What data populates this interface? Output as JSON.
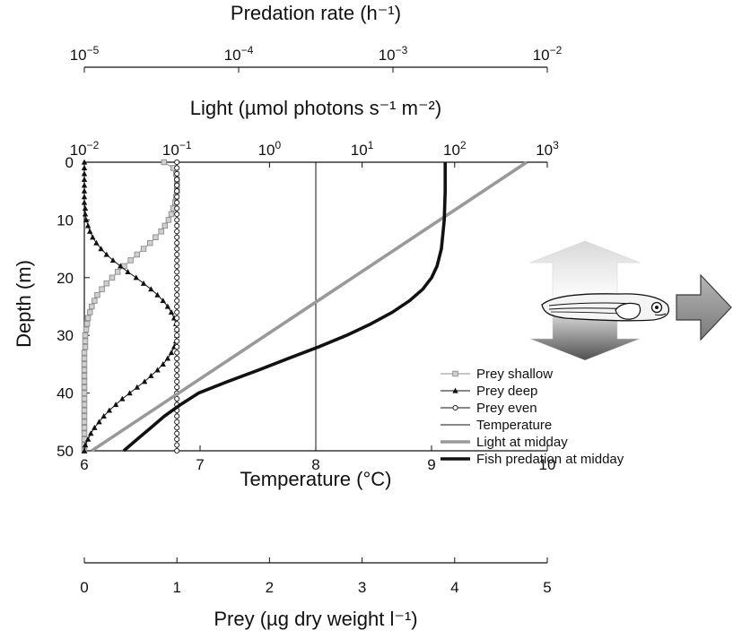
{
  "chart_data": {
    "type": "line",
    "axes": {
      "predation": {
        "label": "Predation rate (h⁻¹)",
        "scale": "log",
        "range": [
          1e-05,
          0.01
        ],
        "ticks": [
          {
            "value": 1e-05,
            "base": "10",
            "exp": "−5"
          },
          {
            "value": 0.0001,
            "base": "10",
            "exp": "−4"
          },
          {
            "value": 0.001,
            "base": "10",
            "exp": "−3"
          },
          {
            "value": 0.01,
            "base": "10",
            "exp": "−2"
          }
        ]
      },
      "light": {
        "label": "Light (µmol photons s⁻¹ m⁻²)",
        "scale": "log",
        "range": [
          0.01,
          1000.0
        ],
        "ticks": [
          {
            "value": 0.01,
            "base": "10",
            "exp": "−2"
          },
          {
            "value": 0.1,
            "base": "10",
            "exp": "−1"
          },
          {
            "value": 1.0,
            "base": "10",
            "exp": "0"
          },
          {
            "value": 10.0,
            "base": "10",
            "exp": "1"
          },
          {
            "value": 100.0,
            "base": "10",
            "exp": "2"
          },
          {
            "value": 1000.0,
            "base": "10",
            "exp": "3"
          }
        ]
      },
      "depth": {
        "label": "Depth (m)",
        "range": [
          0,
          50
        ],
        "inverted": true,
        "ticks": [
          "0",
          "10",
          "20",
          "30",
          "40",
          "50"
        ]
      },
      "temperature": {
        "label": "Temperature (°C)",
        "range": [
          6,
          10
        ],
        "ticks": [
          "6",
          "7",
          "8",
          "9",
          "10"
        ]
      },
      "prey": {
        "label": "Prey (µg dry weight l⁻¹)",
        "range": [
          0,
          5
        ],
        "ticks": [
          "0",
          "1",
          "2",
          "3",
          "4",
          "5"
        ]
      }
    },
    "series": [
      {
        "name": "Prey shallow",
        "axis": "prey",
        "marker": "square",
        "color": "#8c8c8c",
        "depth": [
          0,
          1,
          2,
          3,
          4,
          5,
          6,
          7,
          8,
          9,
          10,
          11,
          12,
          13,
          14,
          15,
          16,
          17,
          18,
          19,
          20,
          21,
          22,
          23,
          24,
          25,
          26,
          27,
          28,
          29,
          30,
          31,
          32,
          33,
          34,
          35,
          36,
          37,
          38,
          39,
          40,
          41,
          42,
          43,
          44,
          45,
          46,
          47,
          48,
          49,
          50
        ],
        "values": [
          0.86,
          0.96,
          0.99,
          1.0,
          1.0,
          1.0,
          0.99,
          0.98,
          0.96,
          0.94,
          0.91,
          0.87,
          0.83,
          0.77,
          0.71,
          0.64,
          0.57,
          0.5,
          0.43,
          0.36,
          0.3,
          0.24,
          0.19,
          0.14,
          0.11,
          0.08,
          0.06,
          0.04,
          0.03,
          0.02,
          0.01,
          0.01,
          0.01,
          0.0,
          0.0,
          0.0,
          0.0,
          0.0,
          0.0,
          0.0,
          0.0,
          0.0,
          0.0,
          0.0,
          0.0,
          0.0,
          0.0,
          0.0,
          0.0,
          0.0,
          0.0
        ]
      },
      {
        "name": "Prey deep",
        "axis": "prey",
        "marker": "triangle",
        "color": "#111111",
        "depth": [
          0,
          1,
          2,
          3,
          4,
          5,
          6,
          7,
          8,
          9,
          10,
          11,
          12,
          13,
          14,
          15,
          16,
          17,
          18,
          19,
          20,
          21,
          22,
          23,
          24,
          25,
          26,
          27,
          28,
          29,
          30,
          31,
          32,
          33,
          34,
          35,
          36,
          37,
          38,
          39,
          40,
          41,
          42,
          43,
          44,
          45,
          46,
          47,
          48,
          49,
          50
        ],
        "values": [
          0.0,
          0.0,
          0.0,
          0.0,
          0.0,
          0.0,
          0.0,
          0.0,
          0.01,
          0.01,
          0.02,
          0.04,
          0.06,
          0.09,
          0.13,
          0.18,
          0.24,
          0.31,
          0.39,
          0.47,
          0.56,
          0.64,
          0.72,
          0.79,
          0.85,
          0.9,
          0.94,
          0.97,
          0.99,
          1.0,
          1.0,
          0.99,
          0.97,
          0.94,
          0.9,
          0.85,
          0.79,
          0.72,
          0.65,
          0.57,
          0.49,
          0.41,
          0.34,
          0.27,
          0.21,
          0.16,
          0.11,
          0.07,
          0.04,
          0.01,
          0.0
        ]
      },
      {
        "name": "Prey even",
        "axis": "prey",
        "marker": "circle",
        "color": "#111111",
        "depth": [
          0,
          1,
          2,
          3,
          4,
          5,
          6,
          7,
          8,
          9,
          10,
          11,
          12,
          13,
          14,
          15,
          16,
          17,
          18,
          19,
          20,
          21,
          22,
          23,
          24,
          25,
          26,
          27,
          28,
          29,
          30,
          31,
          32,
          33,
          34,
          35,
          36,
          37,
          38,
          39,
          40,
          41,
          42,
          43,
          44,
          45,
          46,
          47,
          48,
          49,
          50
        ],
        "values": [
          1.0,
          1.0,
          1.0,
          1.0,
          1.0,
          1.0,
          1.0,
          1.0,
          1.0,
          1.0,
          1.0,
          1.0,
          1.0,
          1.0,
          1.0,
          1.0,
          1.0,
          1.0,
          1.0,
          1.0,
          1.0,
          1.0,
          1.0,
          1.0,
          1.0,
          1.0,
          1.0,
          1.0,
          1.0,
          1.0,
          1.0,
          1.0,
          1.0,
          1.0,
          1.0,
          1.0,
          1.0,
          1.0,
          1.0,
          1.0,
          1.0,
          1.0,
          1.0,
          1.0,
          1.0,
          1.0,
          1.0,
          1.0,
          1.0,
          1.0,
          1.0
        ]
      },
      {
        "name": "Temperature",
        "axis": "temperature",
        "marker": "none",
        "color": "#111111",
        "stroke": "thin",
        "depth": [
          0,
          50
        ],
        "values": [
          8,
          8
        ]
      },
      {
        "name": "Light at midday",
        "axis": "light",
        "marker": "none",
        "color": "#999999",
        "stroke": "thick",
        "depth": [
          0,
          50
        ],
        "values": [
          600,
          0.012
        ]
      },
      {
        "name": "Fish predation at midday",
        "axis": "predation",
        "marker": "none",
        "color": "#111111",
        "stroke": "thick",
        "depth": [
          0,
          5,
          10,
          15,
          18,
          20,
          22,
          24,
          26,
          28,
          30,
          32,
          34,
          36,
          38,
          40,
          42,
          44,
          46,
          48,
          50
        ],
        "values": [
          0.00218,
          0.00218,
          0.00215,
          0.00206,
          0.00193,
          0.00178,
          0.00156,
          0.00128,
          0.00099,
          0.00072,
          0.0005,
          0.00033,
          0.00021,
          0.000135,
          8.5e-05,
          5.5e-05,
          4.2e-05,
          3.3e-05,
          2.7e-05,
          2.2e-05,
          1.8e-05
        ]
      }
    ],
    "legend": {
      "placement": "lower-right inside plot"
    },
    "grid": false
  },
  "illustration": {
    "subject": "fish-larva",
    "colors": {
      "arrow_light": "#d8d8d8",
      "arrow_dark": "#555555",
      "right_arrow": "#9a9a9a"
    }
  }
}
